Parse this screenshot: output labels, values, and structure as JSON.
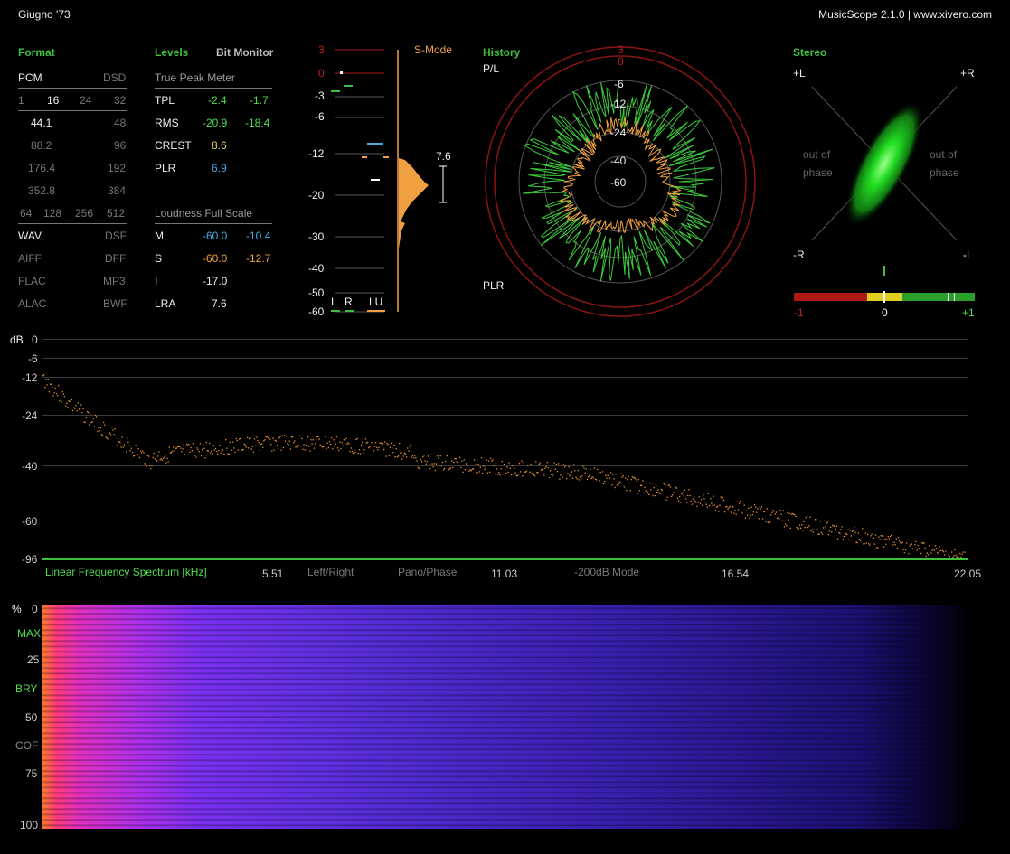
{
  "window": {
    "title": "Giugno '73",
    "app": "MusicScope 2.1.0 | www.xivero.com"
  },
  "format": {
    "header": "Format",
    "pcm": "PCM",
    "dsd": "DSD",
    "bits": [
      "1",
      "16",
      "24",
      "32"
    ],
    "rates": [
      [
        "44.1",
        "48"
      ],
      [
        "88.2",
        "96"
      ],
      [
        "176.4",
        "192"
      ],
      [
        "352.8",
        "384"
      ]
    ],
    "dsd_rates": [
      "64",
      "128",
      "256",
      "512"
    ],
    "types": [
      [
        "WAV",
        "DSF"
      ],
      [
        "AIFF",
        "DFF"
      ],
      [
        "FLAC",
        "MP3"
      ],
      [
        "ALAC",
        "BWF"
      ]
    ]
  },
  "levels": {
    "header": "Levels",
    "bit_monitor": "Bit Monitor",
    "true_peak_title": "True Peak Meter",
    "rows": [
      {
        "label": "TPL",
        "l": "-2.4",
        "r": "-1.7"
      },
      {
        "label": "RMS",
        "l": "-20.9",
        "r": "-18.4"
      },
      {
        "label": "CREST",
        "l": "8.6",
        "r": ""
      },
      {
        "label": "PLR",
        "l": "6.9",
        "r": ""
      }
    ],
    "loudness_title": "Loudness Full Scale",
    "loud_rows": [
      {
        "label": "M",
        "l": "-60.0",
        "r": "-10.4"
      },
      {
        "label": "S",
        "l": "-60.0",
        "r": "-12.7"
      },
      {
        "label": "I",
        "l": "-17.0",
        "r": ""
      },
      {
        "label": "LRA",
        "l": "7.6",
        "r": ""
      }
    ]
  },
  "meter": {
    "scale": [
      "3",
      "0",
      "-3",
      "-6",
      "-12",
      "-20",
      "-30",
      "-40",
      "-50",
      "-60"
    ],
    "mode": "S-Mode",
    "lra_value": "7.6",
    "labels": {
      "l": "L",
      "r": "R",
      "lu": "LU"
    }
  },
  "history": {
    "header": "History",
    "top": "P/L",
    "bottom": "PLR",
    "rings": [
      "3",
      "0",
      "-6",
      "-12",
      "-24",
      "-40",
      "-60"
    ]
  },
  "stereo": {
    "header": "Stereo",
    "corners": {
      "tl": "+L",
      "tr": "+R",
      "bl": "-R",
      "br": "-L"
    },
    "left_phase": [
      "out of",
      "phase"
    ],
    "right_phase": [
      "out of",
      "phase"
    ],
    "corr_scale": [
      "-1",
      "0",
      "+1"
    ]
  },
  "spectrum": {
    "unit": "dB",
    "y_ticks": [
      "0",
      "-6",
      "-12",
      "-24",
      "-40",
      "-60",
      "-96"
    ],
    "x_ticks": [
      "5.51",
      "11.03",
      "16.54",
      "22.05"
    ],
    "title": "Linear Frequency Spectrum [kHz]",
    "options": [
      "Left/Right",
      "Pano/Phase",
      "-200dB Mode"
    ]
  },
  "spectrogram": {
    "unit": "%",
    "ticks": [
      "0",
      "25",
      "50",
      "75",
      "100"
    ],
    "markers": [
      "MAX",
      "BRY",
      "COF"
    ]
  },
  "colors": {
    "accent_green": "#3fbf3f",
    "orange": "#f0a040",
    "blue": "#4aa8e0",
    "red": "#b01818"
  }
}
